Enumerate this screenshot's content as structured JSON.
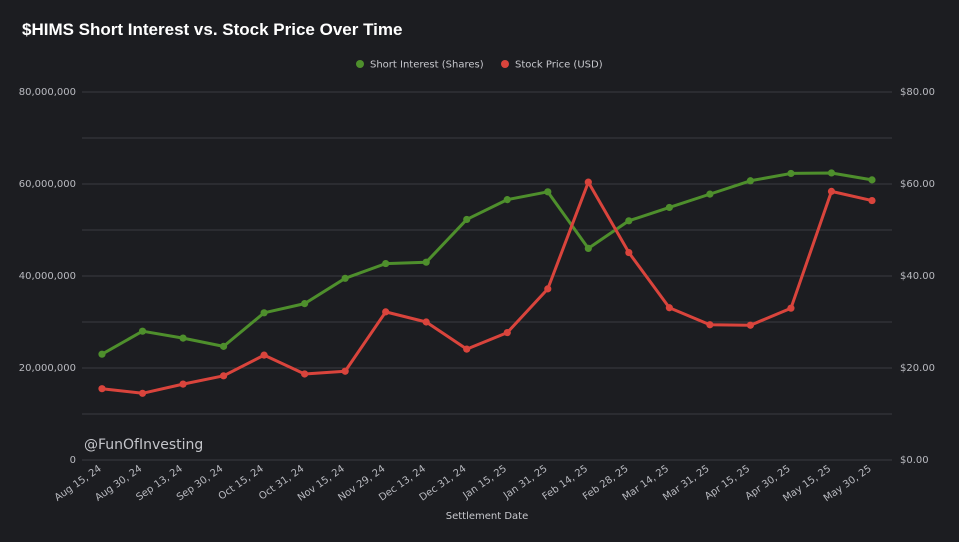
{
  "title": "$HIMS Short Interest vs. Stock Price Over Time",
  "watermark": "@FunOfInvesting",
  "colors": {
    "short_interest": "#4e8f2c",
    "stock_price": "#d9443c",
    "background": "#1c1d21",
    "grid": "#3a3b41"
  },
  "chart_data": {
    "type": "line",
    "title": "$HIMS Short Interest vs. Stock Price Over Time",
    "xlabel": "Settlement Date",
    "ylabel": "",
    "y2label": "",
    "legend_position": "top-center",
    "grid": true,
    "categories": [
      "Aug 15, 24",
      "Aug 30, 24",
      "Sep 13, 24",
      "Sep 30, 24",
      "Oct 15, 24",
      "Oct 31, 24",
      "Nov 15, 24",
      "Nov 29, 24",
      "Dec 13, 24",
      "Dec 31, 24",
      "Jan 15, 25",
      "Jan 31, 25",
      "Feb 14, 25",
      "Feb 28, 25",
      "Mar 14, 25",
      "Mar 31, 25",
      "Apr 15, 25",
      "Apr 30, 25",
      "May 15, 25",
      "May 30, 25"
    ],
    "left_axis": {
      "ylim": [
        0,
        80000000
      ],
      "ticks": [
        "0",
        "20,000,000",
        "40,000,000",
        "60,000,000",
        "80,000,000"
      ]
    },
    "right_axis": {
      "ylim": [
        0,
        80
      ],
      "ticks": [
        "$0.00",
        "$20.00",
        "$40.00",
        "$60.00",
        "$80.00"
      ]
    },
    "series": [
      {
        "name": "Short Interest (Shares)",
        "axis": "left",
        "values": [
          23000000,
          28000000,
          26500000,
          24700000,
          32000000,
          34000000,
          39500000,
          42700000,
          43000000,
          52300000,
          56600000,
          58300000,
          46000000,
          52000000,
          54900000,
          57800000,
          60700000,
          62300000,
          62400000,
          60900000
        ]
      },
      {
        "name": "Stock Price (USD)",
        "axis": "right",
        "values": [
          15.5,
          14.5,
          16.5,
          18.3,
          22.8,
          18.7,
          19.3,
          32.2,
          30.0,
          24.1,
          27.7,
          37.2,
          60.4,
          45.1,
          33.1,
          29.4,
          29.3,
          33.0,
          58.4,
          56.4
        ]
      }
    ]
  }
}
